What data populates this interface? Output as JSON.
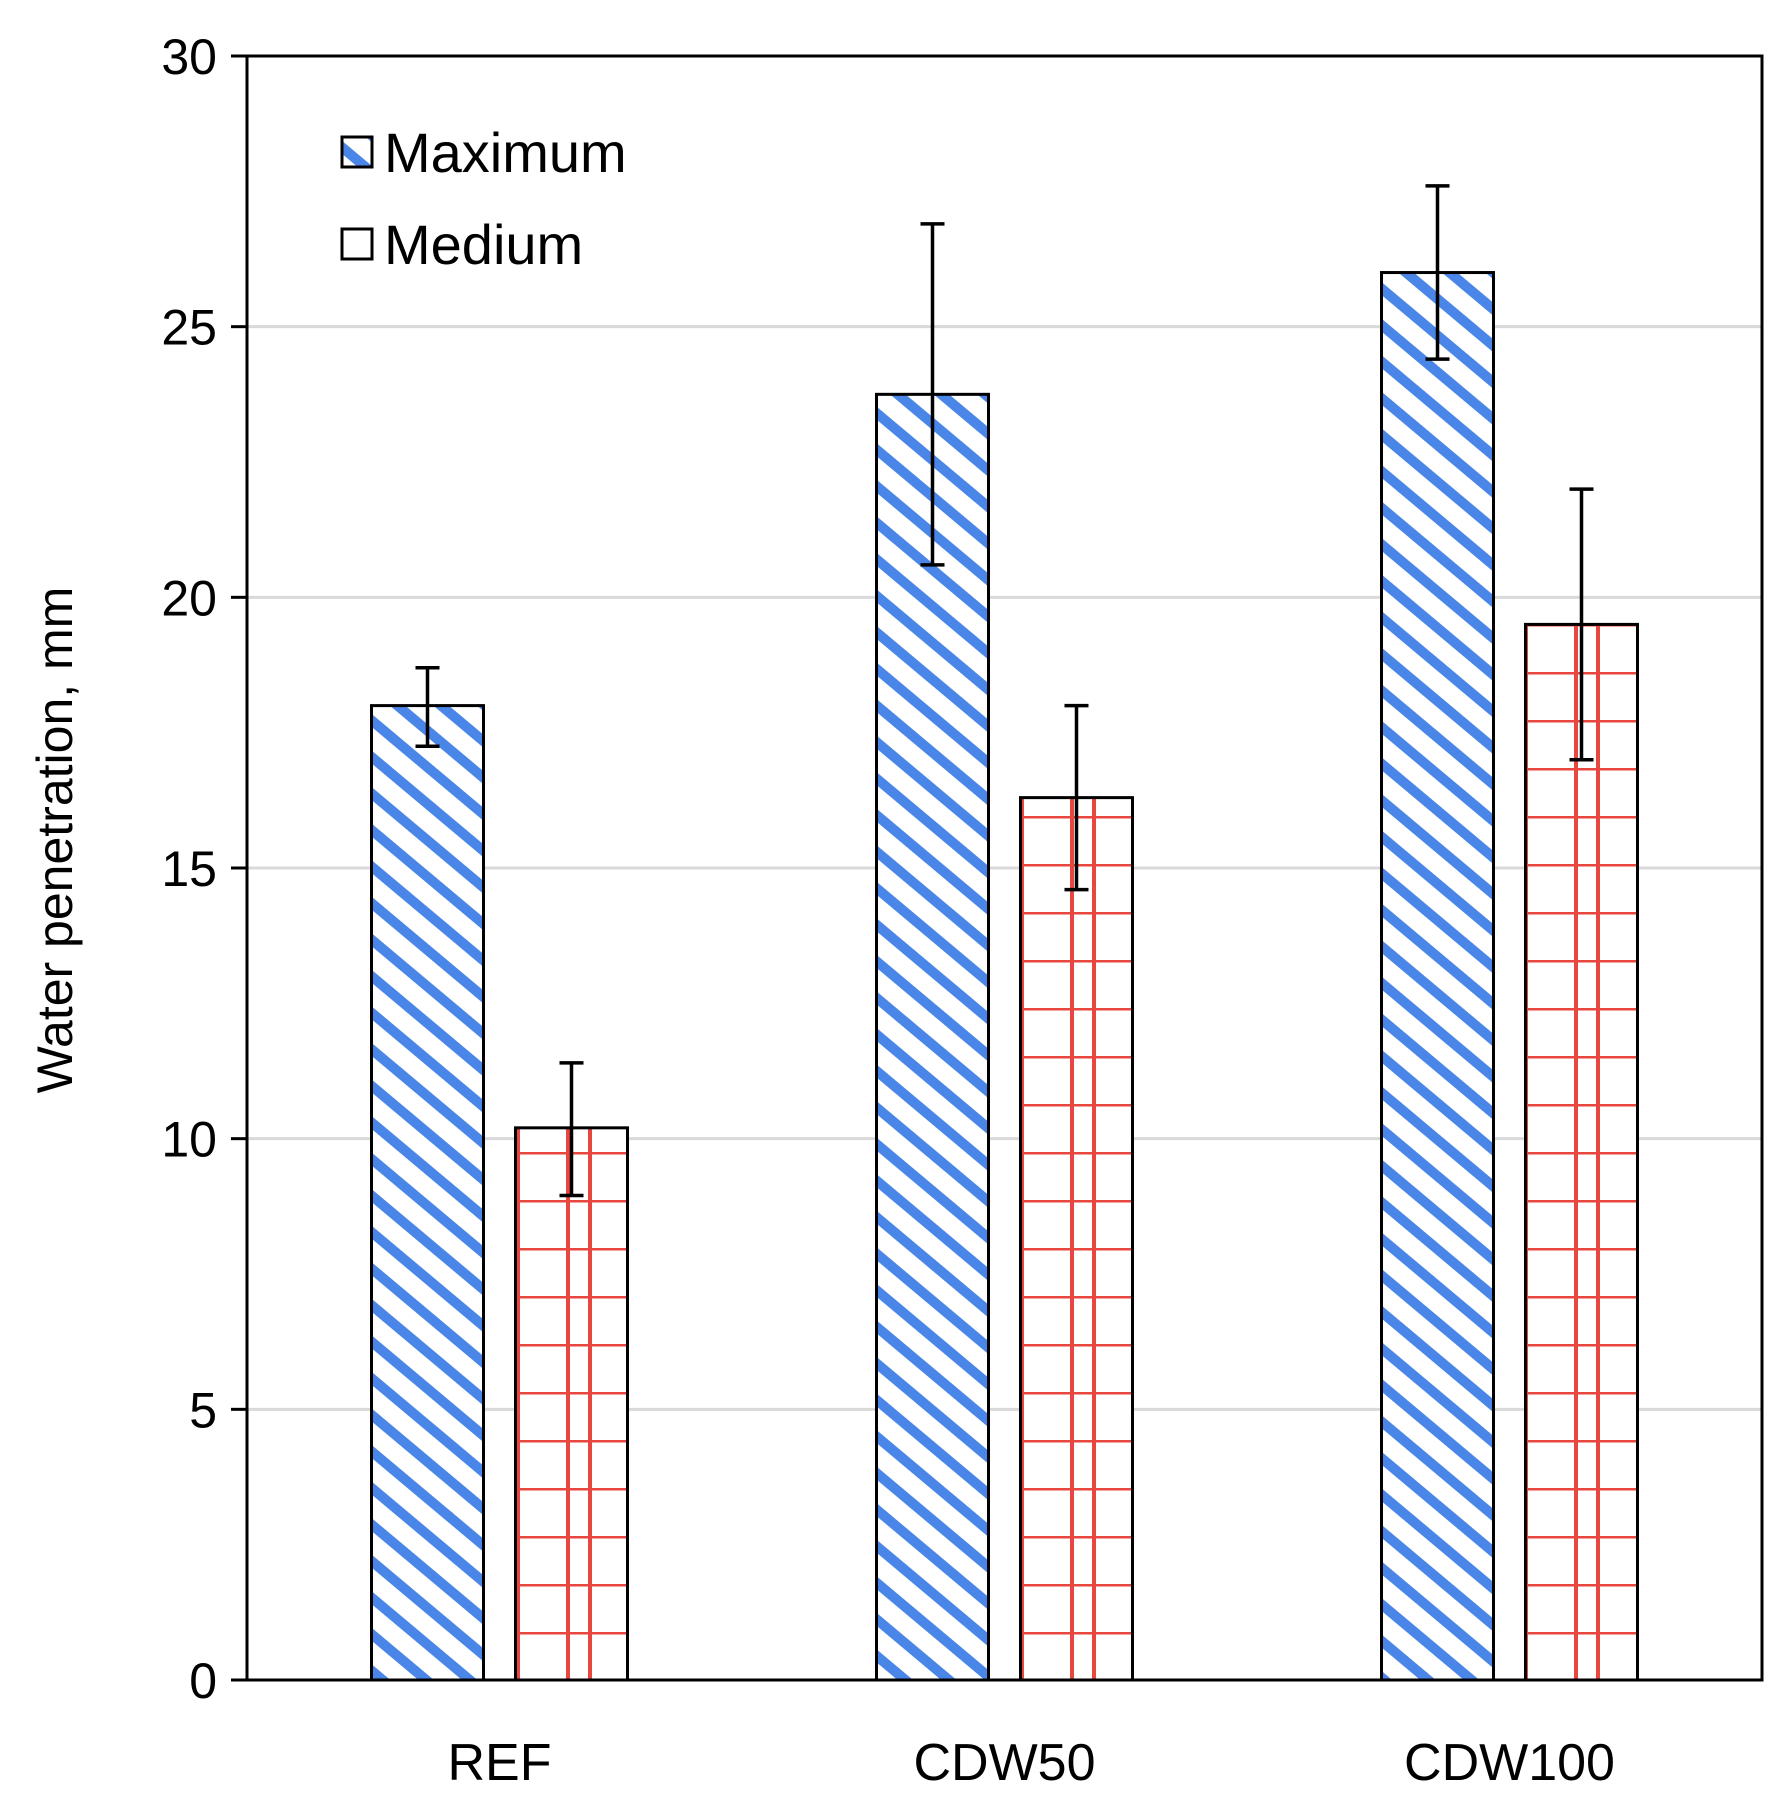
{
  "chart_data": {
    "type": "bar",
    "categories": [
      "REF",
      "CDW50",
      "CDW100"
    ],
    "series": [
      {
        "name": "Maximum",
        "values": [
          18.0,
          23.75,
          26.0
        ],
        "error_low": [
          17.25,
          20.6,
          24.4
        ],
        "error_high": [
          18.7,
          26.9,
          27.6
        ],
        "pattern": "diagonal-stripes",
        "color": "#4a86e8"
      },
      {
        "name": "Medium",
        "values": [
          10.2,
          16.3,
          19.5
        ],
        "error_low": [
          8.95,
          14.6,
          17.0
        ],
        "error_high": [
          11.4,
          18.0,
          22.0
        ],
        "pattern": "grid",
        "color": "#e8473f"
      }
    ],
    "title": "",
    "xlabel": "",
    "ylabel": "Water penetration, mm",
    "ylim": [
      0,
      30
    ],
    "yticks": [
      0,
      5,
      10,
      15,
      20,
      25,
      30
    ],
    "grid": "horizontal",
    "legend_position": "top-left",
    "frame_color": "#000000",
    "grid_color": "#d9d9d9"
  }
}
